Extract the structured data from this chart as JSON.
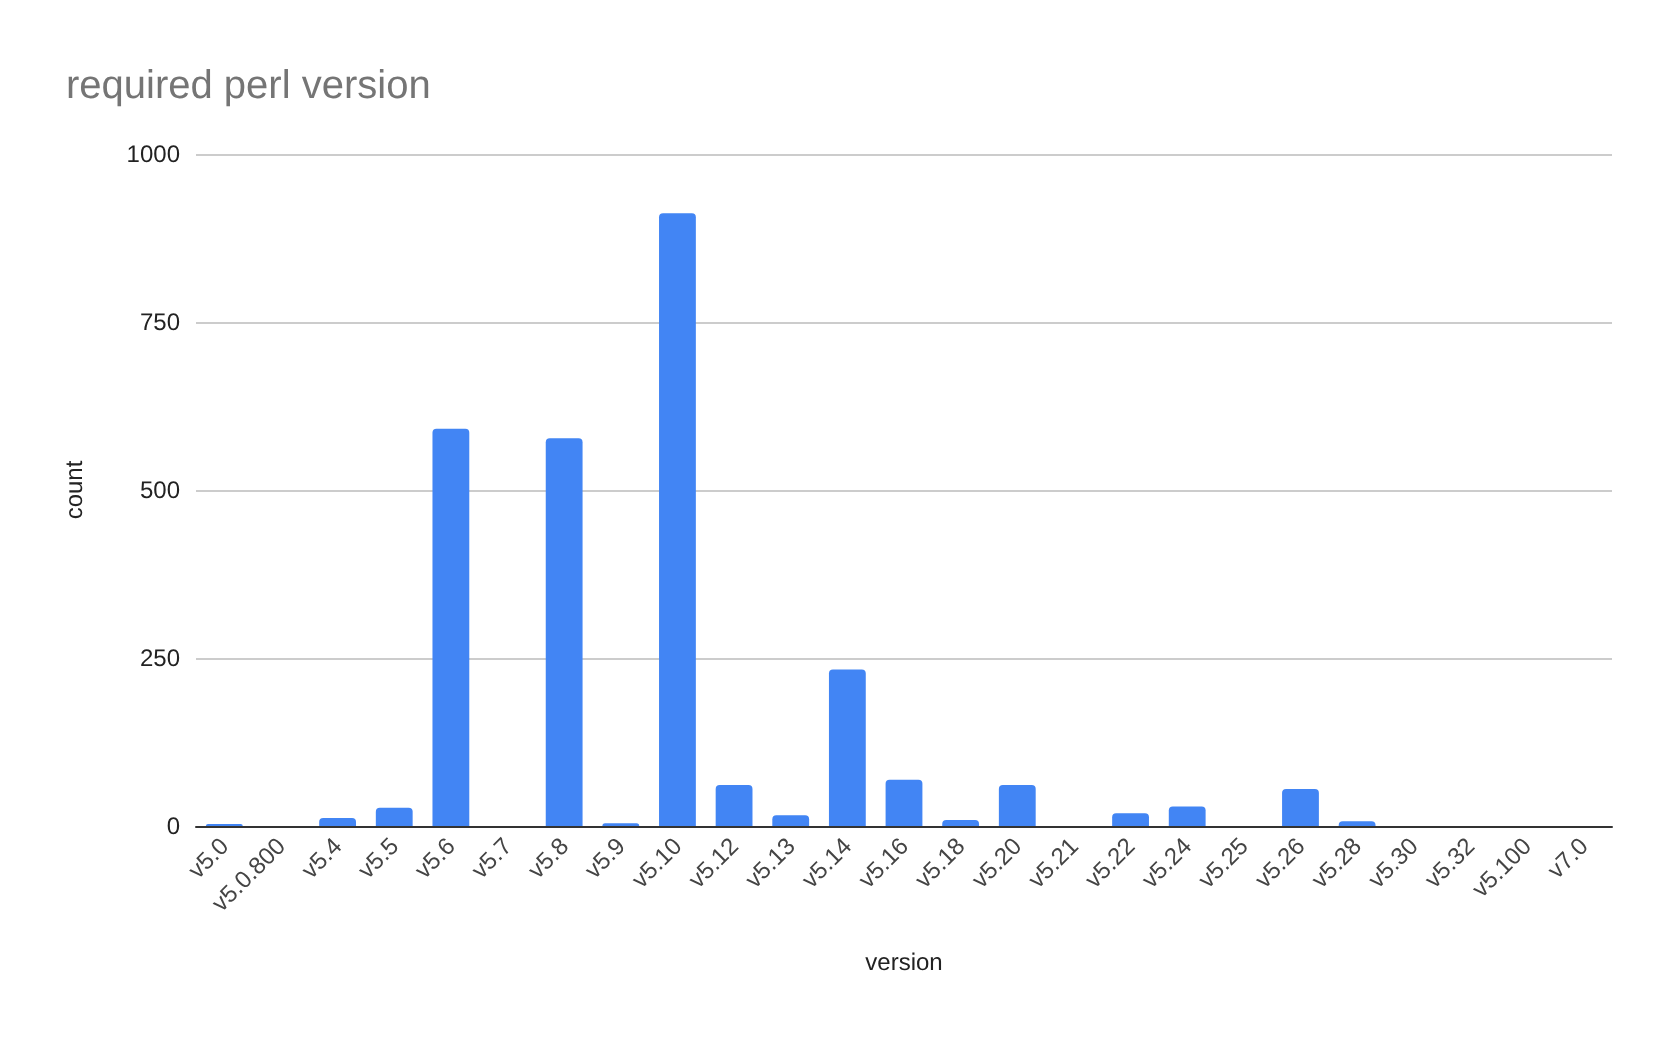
{
  "chart_data": {
    "type": "bar",
    "title": "required perl version",
    "xlabel": "version",
    "ylabel": "count",
    "categories": [
      "v5.0",
      "v5.0.800",
      "v5.4",
      "v5.5",
      "v5.6",
      "v5.7",
      "v5.8",
      "v5.9",
      "v5.10",
      "v5.12",
      "v5.13",
      "v5.14",
      "v5.16",
      "v5.18",
      "v5.20",
      "v5.21",
      "v5.22",
      "v5.24",
      "v5.25",
      "v5.26",
      "v5.28",
      "v5.30",
      "v5.32",
      "v5.100",
      "v7.0"
    ],
    "values": [
      3,
      0,
      12,
      27,
      591,
      0,
      577,
      4,
      912,
      61,
      16,
      233,
      69,
      9,
      61,
      0,
      19,
      29,
      0,
      55,
      7,
      0,
      0,
      0,
      0
    ],
    "color": "#4285f4",
    "ylim": [
      0,
      1000
    ],
    "yticks": [
      0,
      250,
      500,
      750,
      1000
    ],
    "grid": "y"
  }
}
